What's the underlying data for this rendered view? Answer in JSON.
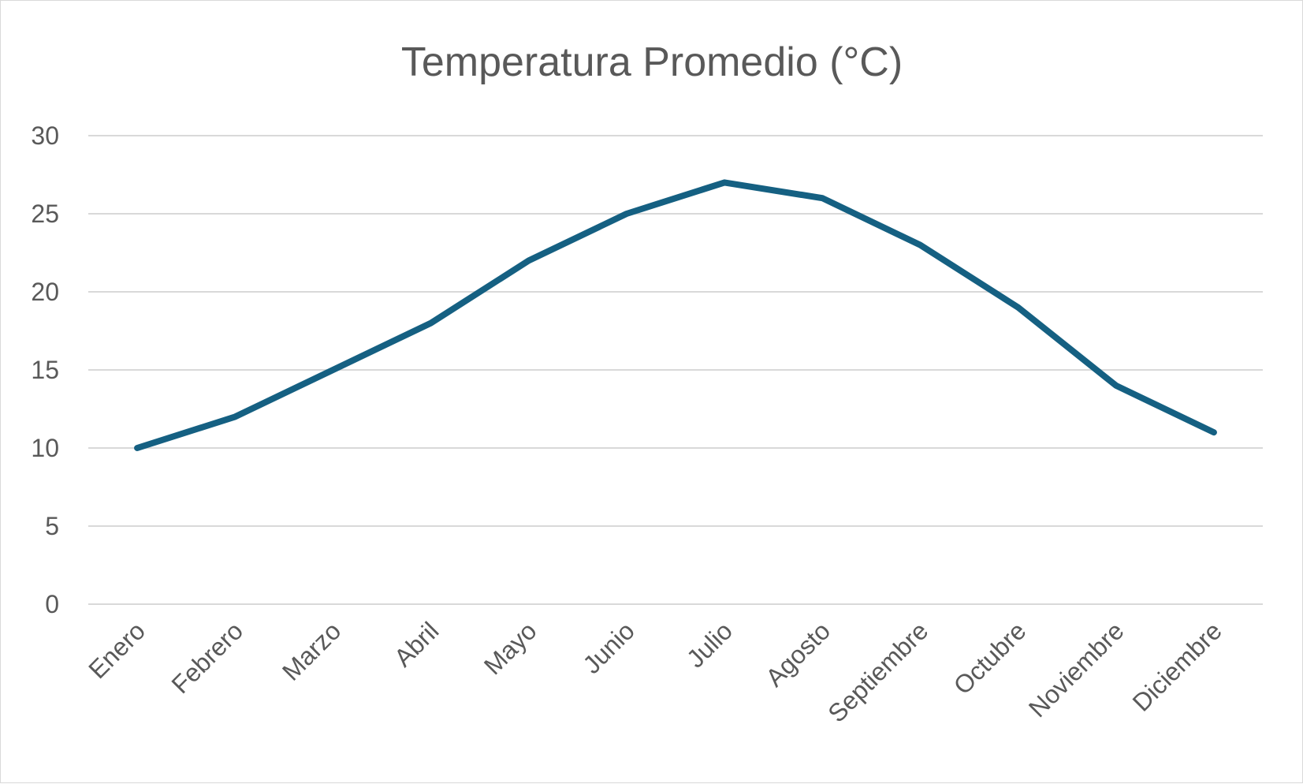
{
  "chart_data": {
    "type": "line",
    "title": "Temperatura Promedio (°C)",
    "xlabel": "",
    "ylabel": "",
    "categories": [
      "Enero",
      "Febrero",
      "Marzo",
      "Abril",
      "Mayo",
      "Junio",
      "Julio",
      "Agosto",
      "Septiembre",
      "Octubre",
      "Noviembre",
      "Diciembre"
    ],
    "series": [
      {
        "values": [
          10,
          12,
          15,
          18,
          22,
          25,
          27,
          26,
          23,
          19,
          14,
          11
        ],
        "color": "#156082"
      }
    ],
    "ylim": [
      0,
      30
    ],
    "yticks": [
      0,
      5,
      10,
      15,
      20,
      25,
      30
    ],
    "grid": true,
    "legend": "none",
    "colors": {
      "gridline": "#d9d9d9",
      "text": "#595959",
      "border": "#d9d9d9"
    }
  }
}
